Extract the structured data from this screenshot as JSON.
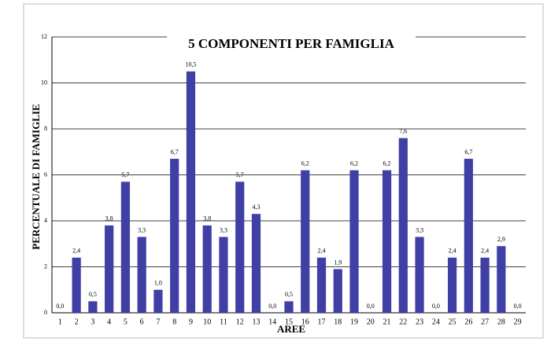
{
  "chart_data": {
    "type": "bar",
    "title": "5 COMPONENTI PER FAMIGLIA",
    "y_label": "PERCENTUALE DI FAMIGLIE",
    "x_label": "AREE",
    "categories": [
      "1",
      "2",
      "3",
      "4",
      "5",
      "6",
      "7",
      "8",
      "9",
      "10",
      "11",
      "12",
      "13",
      "14",
      "15",
      "16",
      "17",
      "18",
      "19",
      "20",
      "21",
      "22",
      "23",
      "24",
      "25",
      "26",
      "27",
      "28",
      "29"
    ],
    "values": [
      0.0,
      2.4,
      0.5,
      3.8,
      5.7,
      3.3,
      1.0,
      6.7,
      10.5,
      3.8,
      3.3,
      5.7,
      4.3,
      0.0,
      0.5,
      6.2,
      2.4,
      1.9,
      6.2,
      0.0,
      6.2,
      7.6,
      3.3,
      0.0,
      2.4,
      6.7,
      2.4,
      2.9,
      0.0
    ],
    "value_labels": [
      "0,0",
      "2,4",
      "0,5",
      "3,8",
      "5,7",
      "3,3",
      "1,0",
      "6,7",
      "10,5",
      "3,8",
      "3,3",
      "5,7",
      "4,3",
      "0,0",
      "0,5",
      "6,2",
      "2,4",
      "1,9",
      "6,2",
      "0,0",
      "6,2",
      "7,6",
      "3,3",
      "0,0",
      "2,4",
      "6,7",
      "2,4",
      "2,9",
      "0,0"
    ],
    "color": "#3f3fa6",
    "ylim": [
      0,
      12
    ],
    "yticks": [
      0,
      2,
      4,
      6,
      8,
      10,
      12
    ],
    "grid": true
  }
}
